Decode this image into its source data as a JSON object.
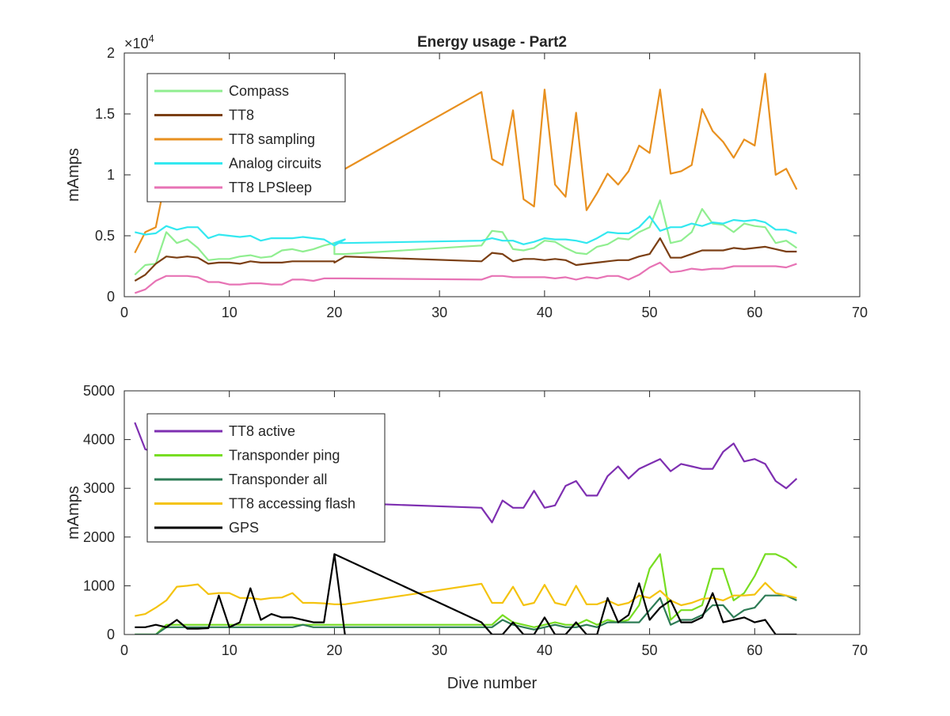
{
  "figure_title": "Energy usage - Part2",
  "chart_data": [
    {
      "type": "line",
      "title": "Energy usage - Part2",
      "xlabel": "",
      "ylabel": "mAmps",
      "xlim": [
        0,
        70
      ],
      "ylim": [
        0,
        20000
      ],
      "x_ticks": [
        "0",
        "10",
        "20",
        "30",
        "40",
        "50",
        "60",
        "70"
      ],
      "y_ticks": [
        "0",
        "0.5",
        "1",
        "1.5",
        "2"
      ],
      "y_multiplier": "×10^4",
      "y_multiplier_base": "×10",
      "y_multiplier_exp": "4",
      "grid": false,
      "legend_position": "top-left",
      "series": [
        {
          "name": "Compass",
          "color": "#90ee90",
          "x": [
            1,
            2,
            3,
            4,
            5,
            6,
            7,
            8,
            9,
            10,
            11,
            12,
            13,
            14,
            15,
            16,
            17,
            18,
            19,
            20,
            20,
            21,
            34,
            35,
            36,
            37,
            38,
            39,
            40,
            41,
            42,
            43,
            44,
            45,
            46,
            47,
            48,
            49,
            50,
            51,
            52,
            53,
            54,
            55,
            56,
            57,
            58,
            59,
            60,
            61,
            62,
            63,
            64
          ],
          "y": [
            1800,
            2600,
            2700,
            5300,
            4400,
            4700,
            4000,
            3000,
            3100,
            3100,
            3300,
            3400,
            3200,
            3300,
            3800,
            3900,
            3700,
            3900,
            4200,
            4400,
            3500,
            3500,
            4200,
            5400,
            5300,
            3900,
            3800,
            4000,
            4600,
            4500,
            4000,
            3600,
            3500,
            4100,
            4300,
            4800,
            4700,
            5300,
            5700,
            7900,
            4400,
            4600,
            5300,
            7200,
            6000,
            5900,
            5300,
            6000,
            5800,
            5700,
            4400,
            4600,
            4000
          ]
        },
        {
          "name": "TT8",
          "color": "#7b3f14",
          "x": [
            1,
            2,
            3,
            4,
            5,
            6,
            7,
            8,
            9,
            10,
            11,
            12,
            13,
            14,
            15,
            16,
            17,
            18,
            19,
            20,
            20,
            21,
            34,
            35,
            36,
            37,
            38,
            39,
            40,
            41,
            42,
            43,
            44,
            45,
            46,
            47,
            48,
            49,
            50,
            51,
            52,
            53,
            54,
            55,
            56,
            57,
            58,
            59,
            60,
            61,
            62,
            63,
            64
          ],
          "y": [
            1300,
            1800,
            2700,
            3300,
            3200,
            3300,
            3200,
            2700,
            2800,
            2800,
            2700,
            2900,
            2800,
            2800,
            2800,
            2900,
            2900,
            2900,
            2900,
            2900,
            2800,
            3300,
            2900,
            3600,
            3500,
            2900,
            3100,
            3100,
            3000,
            3100,
            3000,
            2600,
            2700,
            2800,
            2900,
            3000,
            3000,
            3300,
            3500,
            4800,
            3200,
            3200,
            3500,
            3800,
            3800,
            3800,
            4000,
            3900,
            4000,
            4100,
            3900,
            3700,
            3700
          ]
        },
        {
          "name": "TT8 sampling",
          "color": "#e8901f",
          "x": [
            1,
            2,
            3,
            4,
            20,
            34,
            35,
            36,
            37,
            38,
            39,
            40,
            41,
            42,
            43,
            44,
            45,
            46,
            47,
            48,
            49,
            50,
            51,
            52,
            53,
            54,
            55,
            56,
            57,
            58,
            59,
            60,
            61,
            62,
            63,
            64
          ],
          "y": [
            3600,
            5300,
            5700,
            10000,
            10000,
            16800,
            11300,
            10800,
            15300,
            8000,
            7400,
            17000,
            9200,
            8200,
            15100,
            7100,
            8500,
            10100,
            9200,
            10300,
            12400,
            11800,
            17000,
            10100,
            10300,
            10800,
            15400,
            13600,
            12700,
            11400,
            12900,
            12400,
            18300,
            10000,
            10500,
            8800
          ]
        },
        {
          "name": "Analog circuits",
          "color": "#33e8f0",
          "x": [
            1,
            2,
            3,
            4,
            5,
            6,
            7,
            8,
            9,
            10,
            11,
            12,
            13,
            14,
            15,
            16,
            17,
            18,
            19,
            20,
            21,
            20,
            21,
            34,
            35,
            36,
            37,
            38,
            39,
            40,
            41,
            42,
            43,
            44,
            45,
            46,
            47,
            48,
            49,
            50,
            51,
            52,
            53,
            54,
            55,
            56,
            57,
            58,
            59,
            60,
            61,
            62,
            63,
            64
          ],
          "y": [
            5300,
            5100,
            5200,
            5800,
            5500,
            5700,
            5700,
            4800,
            5100,
            5000,
            4900,
            5000,
            4600,
            4800,
            4800,
            4800,
            4900,
            4800,
            4700,
            4200,
            4700,
            4400,
            4400,
            4600,
            4800,
            4600,
            4600,
            4300,
            4500,
            4800,
            4700,
            4700,
            4600,
            4400,
            4800,
            5300,
            5200,
            5200,
            5700,
            6600,
            5400,
            5700,
            5700,
            6000,
            5800,
            6100,
            6000,
            6300,
            6200,
            6300,
            6100,
            5500,
            5500,
            5200
          ]
        },
        {
          "name": "TT8 LPSleep",
          "color": "#e773b5",
          "x": [
            1,
            2,
            3,
            4,
            5,
            6,
            7,
            8,
            9,
            10,
            11,
            12,
            13,
            14,
            15,
            16,
            17,
            18,
            19,
            20,
            21,
            34,
            35,
            36,
            37,
            38,
            39,
            40,
            41,
            42,
            43,
            44,
            45,
            46,
            47,
            48,
            49,
            50,
            51,
            52,
            53,
            54,
            55,
            56,
            57,
            58,
            59,
            60,
            61,
            62,
            63,
            64
          ],
          "y": [
            300,
            600,
            1300,
            1700,
            1700,
            1700,
            1600,
            1200,
            1200,
            1000,
            1000,
            1100,
            1100,
            1000,
            1000,
            1400,
            1400,
            1300,
            1500,
            1500,
            1500,
            1400,
            1700,
            1700,
            1600,
            1600,
            1600,
            1600,
            1500,
            1600,
            1400,
            1600,
            1500,
            1700,
            1700,
            1400,
            1800,
            2400,
            2800,
            2000,
            2100,
            2300,
            2200,
            2300,
            2300,
            2500,
            2500,
            2500,
            2500,
            2500,
            2400,
            2700
          ]
        }
      ]
    },
    {
      "type": "line",
      "title": "",
      "xlabel": "Dive number",
      "ylabel": "mAmps",
      "xlim": [
        0,
        70
      ],
      "ylim": [
        0,
        5000
      ],
      "x_ticks": [
        "0",
        "10",
        "20",
        "30",
        "40",
        "50",
        "60",
        "70"
      ],
      "y_ticks": [
        "0",
        "1000",
        "2000",
        "3000",
        "4000",
        "5000"
      ],
      "grid": false,
      "legend_position": "top-left",
      "series": [
        {
          "name": "TT8 active",
          "color": "#7e2fb1",
          "x": [
            1,
            2,
            21,
            34,
            35,
            36,
            37,
            38,
            39,
            40,
            41,
            42,
            43,
            44,
            45,
            46,
            47,
            48,
            49,
            50,
            51,
            52,
            53,
            54,
            55,
            56,
            57,
            58,
            59,
            60,
            61,
            62,
            63,
            64
          ],
          "y": [
            4350,
            3800,
            2700,
            2600,
            2300,
            2750,
            2600,
            2600,
            2950,
            2600,
            2650,
            3050,
            3150,
            2850,
            2850,
            3250,
            3450,
            3200,
            3400,
            3500,
            3600,
            3350,
            3500,
            3450,
            3400,
            3400,
            3750,
            3920,
            3550,
            3600,
            3500,
            3150,
            3000,
            3200
          ]
        },
        {
          "name": "Transponder ping",
          "color": "#77dd22",
          "x": [
            1,
            3,
            4,
            5,
            6,
            7,
            8,
            9,
            10,
            11,
            12,
            13,
            14,
            15,
            16,
            17,
            18,
            19,
            20,
            21,
            34,
            35,
            36,
            37,
            38,
            39,
            40,
            41,
            42,
            43,
            44,
            45,
            46,
            47,
            48,
            49,
            50,
            51,
            52,
            53,
            54,
            55,
            56,
            57,
            58,
            59,
            60,
            61,
            62,
            63,
            64
          ],
          "y": [
            0,
            0,
            200,
            200,
            200,
            200,
            200,
            200,
            200,
            200,
            200,
            200,
            200,
            200,
            200,
            200,
            200,
            200,
            200,
            200,
            200,
            200,
            400,
            250,
            200,
            150,
            200,
            250,
            200,
            200,
            300,
            200,
            300,
            250,
            300,
            600,
            1350,
            1650,
            300,
            500,
            500,
            600,
            1350,
            1350,
            700,
            850,
            1200,
            1650,
            1650,
            1550,
            1370
          ]
        },
        {
          "name": "Transponder all",
          "color": "#2e7c56",
          "x": [
            1,
            3,
            4,
            5,
            6,
            7,
            8,
            9,
            10,
            11,
            12,
            13,
            14,
            15,
            16,
            17,
            18,
            19,
            20,
            21,
            34,
            35,
            36,
            37,
            38,
            39,
            40,
            41,
            42,
            43,
            44,
            45,
            46,
            47,
            48,
            49,
            50,
            51,
            52,
            53,
            54,
            55,
            56,
            57,
            58,
            59,
            60,
            61,
            62,
            63,
            64
          ],
          "y": [
            0,
            0,
            150,
            150,
            150,
            150,
            150,
            150,
            150,
            150,
            150,
            150,
            150,
            150,
            150,
            200,
            150,
            150,
            150,
            150,
            150,
            150,
            300,
            200,
            150,
            100,
            150,
            200,
            150,
            150,
            200,
            150,
            250,
            250,
            250,
            250,
            500,
            750,
            200,
            300,
            300,
            400,
            600,
            600,
            350,
            500,
            550,
            800,
            800,
            800,
            700
          ]
        },
        {
          "name": "TT8 accessing flash",
          "color": "#f4c30f",
          "x": [
            1,
            2,
            3,
            4,
            5,
            6,
            7,
            8,
            9,
            10,
            11,
            12,
            13,
            14,
            15,
            16,
            17,
            18,
            19,
            20,
            21,
            34,
            35,
            36,
            37,
            38,
            39,
            40,
            41,
            42,
            43,
            44,
            45,
            46,
            47,
            48,
            49,
            50,
            51,
            52,
            53,
            54,
            55,
            56,
            57,
            58,
            59,
            60,
            61,
            62,
            63,
            64
          ],
          "y": [
            380,
            420,
            550,
            700,
            980,
            1000,
            1030,
            830,
            850,
            850,
            750,
            750,
            720,
            750,
            760,
            850,
            650,
            650,
            640,
            620,
            620,
            1040,
            650,
            650,
            980,
            600,
            650,
            1020,
            650,
            600,
            1000,
            620,
            620,
            700,
            600,
            650,
            800,
            750,
            900,
            700,
            600,
            650,
            730,
            750,
            700,
            800,
            800,
            820,
            1060,
            850,
            800,
            750
          ]
        },
        {
          "name": "GPS",
          "color": "#000000",
          "x": [
            1,
            2,
            3,
            4,
            5,
            6,
            7,
            8,
            9,
            10,
            11,
            12,
            13,
            14,
            15,
            16,
            17,
            18,
            19,
            20,
            21,
            20,
            34,
            35,
            36,
            37,
            38,
            39,
            40,
            41,
            42,
            43,
            44,
            45,
            46,
            47,
            48,
            49,
            50,
            51,
            52,
            53,
            54,
            55,
            56,
            57,
            58,
            59,
            60,
            61,
            62,
            63,
            64
          ],
          "y": [
            150,
            150,
            200,
            150,
            300,
            120,
            120,
            130,
            800,
            150,
            250,
            950,
            300,
            420,
            350,
            350,
            300,
            250,
            250,
            1650,
            0,
            1650,
            250,
            0,
            0,
            250,
            0,
            0,
            350,
            0,
            0,
            250,
            0,
            0,
            750,
            250,
            400,
            1050,
            300,
            550,
            700,
            250,
            250,
            350,
            850,
            250,
            300,
            350,
            250,
            300,
            0,
            0,
            0
          ]
        }
      ]
    }
  ]
}
